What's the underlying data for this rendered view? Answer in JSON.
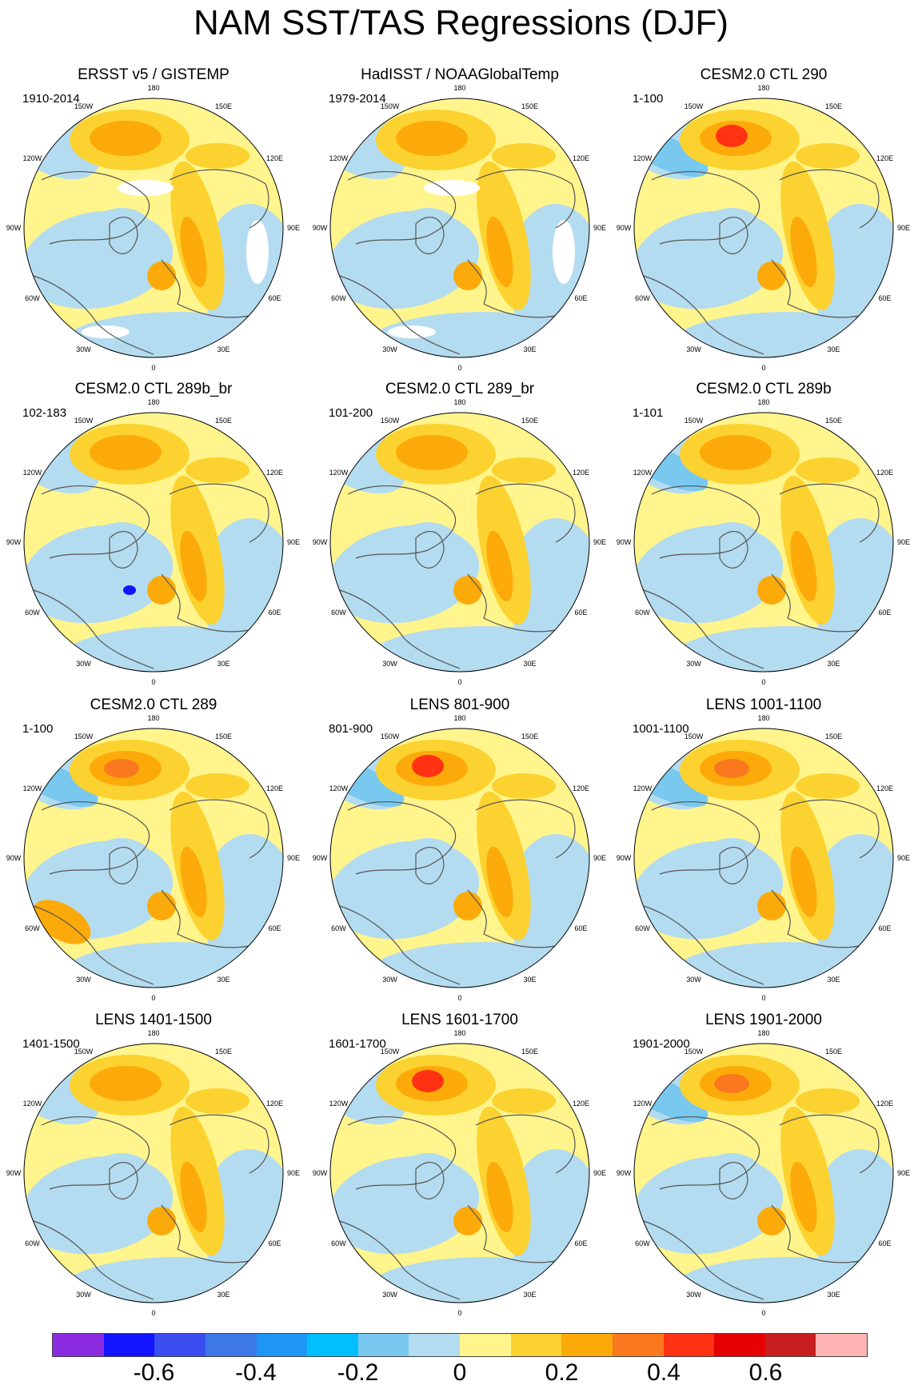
{
  "title": "NAM SST/TAS Regressions (DJF)",
  "longitude_labels": [
    "180",
    "150E",
    "120E",
    "90E",
    "60E",
    "30E",
    "0",
    "30W",
    "60W",
    "90W",
    "120W",
    "150W"
  ],
  "panels": [
    {
      "title": "ERSST v5 / GISTEMP",
      "period": "1910-2014",
      "missing_data": true
    },
    {
      "title": "HadISST / NOAAGlobalTemp",
      "period": "1979-2014",
      "missing_data": true
    },
    {
      "title": "CESM2.0 CTL 290",
      "period": "1-100",
      "missing_data": false
    },
    {
      "title": "CESM2.0 CTL 289b_br",
      "period": "102-183",
      "missing_data": false
    },
    {
      "title": "CESM2.0 CTL 289_br",
      "period": "101-200",
      "missing_data": false
    },
    {
      "title": "CESM2.0 CTL 289b",
      "period": "1-101",
      "missing_data": false
    },
    {
      "title": "CESM2.0 CTL 289",
      "period": "1-100",
      "missing_data": false
    },
    {
      "title": "LENS 801-900",
      "period": "801-900",
      "missing_data": false
    },
    {
      "title": "LENS 1001-1100",
      "period": "1001-1100",
      "missing_data": false
    },
    {
      "title": "LENS 1401-1500",
      "period": "1401-1500",
      "missing_data": false
    },
    {
      "title": "LENS 1601-1700",
      "period": "1601-1700",
      "missing_data": false
    },
    {
      "title": "LENS 1901-2000",
      "period": "1901-2000",
      "missing_data": false
    }
  ],
  "colorbar": {
    "colors": [
      "#8a2be2",
      "#1414ff",
      "#3a4ef0",
      "#3c78e6",
      "#1e96f5",
      "#00bfff",
      "#78c8f0",
      "#b4dcf0",
      "#fff58c",
      "#fcd230",
      "#fcaa0a",
      "#fa781e",
      "#ff3214",
      "#e60000",
      "#c81e1e",
      "#ffb4b4"
    ],
    "tick_labels": [
      "-0.6",
      "-0.4",
      "-0.2",
      "0",
      "0.2",
      "0.4",
      "0.6"
    ],
    "tick_values": [
      -0.6,
      -0.4,
      -0.2,
      0,
      0.2,
      0.4,
      0.6
    ],
    "range": [
      -0.8,
      0.8
    ]
  },
  "palette": {
    "land_outline": "#555555",
    "missing": "#ffffff",
    "map_border": "#000000"
  }
}
